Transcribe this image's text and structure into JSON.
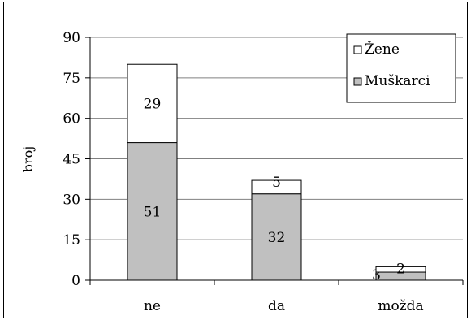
{
  "chart_data": {
    "type": "bar",
    "stacked": true,
    "categories": [
      "ne",
      "da",
      "možda"
    ],
    "series": [
      {
        "name": "Muškarci",
        "values": [
          51,
          32,
          3
        ],
        "color": "#c0c0c0"
      },
      {
        "name": "Žene",
        "values": [
          29,
          5,
          2
        ],
        "color": "#ffffff"
      }
    ],
    "ylabel": "broj",
    "xlabel": "",
    "ylim": [
      0,
      90
    ],
    "yticks": [
      0,
      15,
      30,
      45,
      60,
      75,
      90
    ],
    "grid": true,
    "legend": {
      "position": "top-right",
      "order": [
        "Žene",
        "Muškarci"
      ]
    }
  }
}
